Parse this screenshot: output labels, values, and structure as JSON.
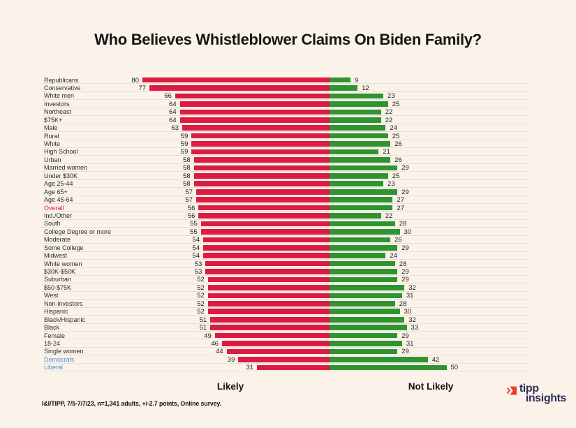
{
  "page": {
    "background": "#fbf3ea"
  },
  "title": "Who Believes Whistleblower Claims On Biden Family?",
  "chart_data": {
    "type": "bar",
    "orientation": "horizontal-diverging",
    "title": "Who Believes Whistleblower Claims On Biden Family?",
    "categories": [
      "Republicans",
      "Conservative",
      "White men",
      "Investors",
      "Northeast",
      "$75K+",
      "Male",
      "Rural",
      "White",
      "High School",
      "Urban",
      "Married women",
      "Under $30K",
      "Age 25-44",
      "Age 65+",
      "Age 45-64",
      "Overall",
      "Ind./Other",
      "South",
      "College Degree or more",
      "Moderate",
      "Some College",
      "Midwest",
      "White women",
      "$30K-$50K",
      "Suburban",
      "$50-$75K",
      "West",
      "Non-investors",
      "Hispanic",
      "Black/Hispanic",
      "Black",
      "Female",
      "18-24",
      "Single women",
      "Democrats",
      "Liberal"
    ],
    "series": [
      {
        "name": "Likely",
        "color": "#dc1b43",
        "values": [
          80,
          77,
          66,
          64,
          64,
          64,
          63,
          59,
          59,
          59,
          58,
          58,
          58,
          58,
          57,
          57,
          56,
          56,
          55,
          55,
          54,
          54,
          54,
          53,
          53,
          52,
          52,
          52,
          52,
          52,
          51,
          51,
          49,
          46,
          44,
          39,
          31
        ]
      },
      {
        "name": "Not Likely",
        "color": "#2e9432",
        "values": [
          9,
          12,
          23,
          25,
          22,
          22,
          24,
          25,
          26,
          21,
          26,
          29,
          25,
          23,
          29,
          27,
          27,
          22,
          28,
          30,
          26,
          29,
          24,
          28,
          29,
          29,
          32,
          31,
          28,
          30,
          32,
          33,
          29,
          31,
          29,
          42,
          50
        ]
      }
    ],
    "axis_labels": {
      "left": "Likely",
      "right": "Not Likely"
    },
    "highlight_labels": {
      "Overall": "#dc1b43",
      "Democrats": "#4a8ed8",
      "Liberal": "#4a8ed8"
    },
    "value_unit": "percent",
    "grid": "row-separators-only",
    "legend_position": "below"
  },
  "footer": {
    "source": "I&I/TIPP, 7/5-7/7/23, n=1,341 adults, +/-2.7 points, Online survey."
  },
  "logo": {
    "word1": "tipp",
    "word2": "insights",
    "icon_color": "#e8402c",
    "text_color": "#2f3057"
  }
}
